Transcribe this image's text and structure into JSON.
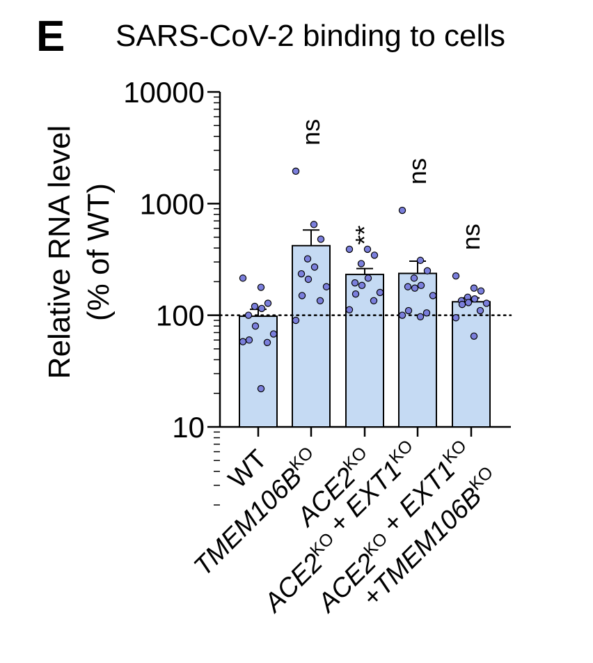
{
  "panel_letter": "E",
  "chart_data": {
    "type": "bar",
    "title": "SARS-CoV-2 binding to cells",
    "ylabel_lines": [
      "Relative RNA level",
      "(% of WT)"
    ],
    "xlabel": "",
    "y_scale": "log",
    "ylim": [
      10,
      10000
    ],
    "y_ticks": [
      10,
      100,
      1000,
      10000
    ],
    "y_tick_labels": [
      "10",
      "100",
      "1000",
      "10000"
    ],
    "reference_line": 100,
    "colors": {
      "bar_fill": "#c5daf3",
      "point_fill": "#7b7fdc",
      "stroke": "#000000"
    },
    "categories": [
      {
        "id": "WT",
        "label_parts": [
          {
            "t": "WT",
            "s": "upright"
          }
        ],
        "mean": 98,
        "sem_upper": 113,
        "significance": "",
        "points": [
          215,
          178,
          128,
          120,
          115,
          100,
          80,
          68,
          60,
          57,
          58,
          22
        ]
      },
      {
        "id": "TMEM106B-KO",
        "label_parts": [
          {
            "t": "TMEM106B",
            "s": "italic"
          },
          {
            "t": "KO",
            "s": "sup"
          }
        ],
        "mean": 420,
        "sem_upper": 580,
        "significance": "ns",
        "points": [
          1950,
          650,
          480,
          320,
          270,
          235,
          210,
          180,
          150,
          135,
          90
        ]
      },
      {
        "id": "ACE2-KO",
        "label_parts": [
          {
            "t": "ACE2",
            "s": "italic"
          },
          {
            "t": "KO",
            "s": "sup"
          }
        ],
        "mean": 232,
        "sem_upper": 262,
        "significance": "**",
        "points": [
          390,
          390,
          345,
          290,
          215,
          195,
          185,
          160,
          155,
          135,
          112
        ]
      },
      {
        "id": "ACE2-KO+EXT1-KO",
        "label_parts": [
          {
            "t": "ACE2",
            "s": "italic"
          },
          {
            "t": "KO",
            "s": "sup"
          },
          {
            "t": " + ",
            "s": "upright"
          },
          {
            "t": "EXT1",
            "s": "italic"
          },
          {
            "t": "KO",
            "s": "sup"
          }
        ],
        "mean": 237,
        "sem_upper": 305,
        "significance": "ns",
        "points": [
          870,
          310,
          250,
          215,
          185,
          180,
          175,
          150,
          110,
          105,
          100,
          97
        ]
      },
      {
        "id": "ACE2-KO+EXT1-KO+TMEM106B-KO",
        "label_parts": [
          {
            "t": "ACE2",
            "s": "italic"
          },
          {
            "t": "KO",
            "s": "sup"
          },
          {
            "t": " + ",
            "s": "upright"
          },
          {
            "t": "EXT1",
            "s": "italic"
          },
          {
            "t": "KO",
            "s": "sup"
          }
        ],
        "label_parts_line2": [
          {
            "t": "+",
            "s": "upright"
          },
          {
            "t": "TMEM106B",
            "s": "italic"
          },
          {
            "t": "KO",
            "s": "sup"
          }
        ],
        "mean": 132,
        "sem_upper": 143,
        "significance": "ns",
        "points": [
          225,
          175,
          165,
          145,
          140,
          135,
          130,
          128,
          125,
          110,
          95,
          65
        ]
      }
    ]
  }
}
